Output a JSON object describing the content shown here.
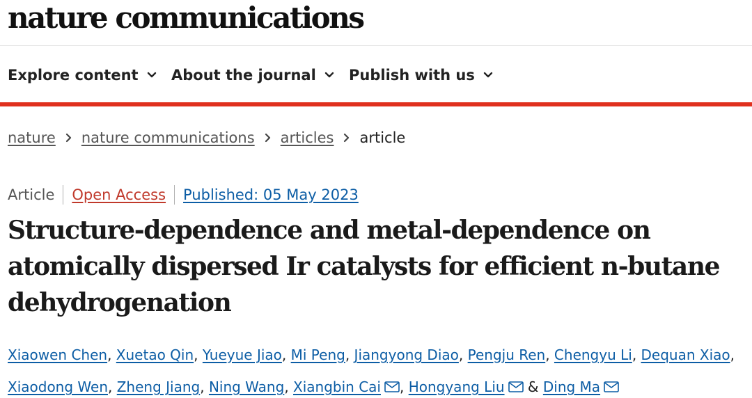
{
  "brand": {
    "logo_text": "nature communications"
  },
  "nav": {
    "items": [
      {
        "label": "Explore content",
        "icon": "chevron-down-icon"
      },
      {
        "label": "About the journal",
        "icon": "chevron-down-icon"
      },
      {
        "label": "Publish with us",
        "icon": "chevron-down-icon"
      }
    ],
    "accent_color": "#e0301e"
  },
  "breadcrumb": {
    "items": [
      {
        "label": "nature"
      },
      {
        "label": "nature communications"
      },
      {
        "label": "articles"
      },
      {
        "label": "article"
      }
    ]
  },
  "article": {
    "type": "Article",
    "access": "Open Access",
    "published": "Published: 05 May 2023",
    "title": "Structure-dependence and metal-dependence on atomically dispersed Ir catalysts for efficient n-butane dehydrogenation",
    "authors": [
      {
        "name": "Xiaowen Chen",
        "mail": false
      },
      {
        "name": "Xuetao Qin",
        "mail": false
      },
      {
        "name": "Yueyue Jiao",
        "mail": false
      },
      {
        "name": "Mi Peng",
        "mail": false
      },
      {
        "name": "Jiangyong Diao",
        "mail": false
      },
      {
        "name": "Pengju Ren",
        "mail": false
      },
      {
        "name": "Chengyu Li",
        "mail": false
      },
      {
        "name": "Dequan Xiao",
        "mail": false
      },
      {
        "name": "Xiaodong Wen",
        "mail": false
      },
      {
        "name": "Zheng Jiang",
        "mail": false
      },
      {
        "name": "Ning Wang",
        "mail": false
      },
      {
        "name": "Xiangbin Cai",
        "mail": true
      },
      {
        "name": "Hongyang Liu",
        "mail": true
      },
      {
        "name": "Ding Ma",
        "mail": true
      }
    ],
    "author_separator": ", ",
    "author_last_joiner": " & ",
    "link_color": "#0c5da5",
    "open_access_color": "#c0392b"
  }
}
